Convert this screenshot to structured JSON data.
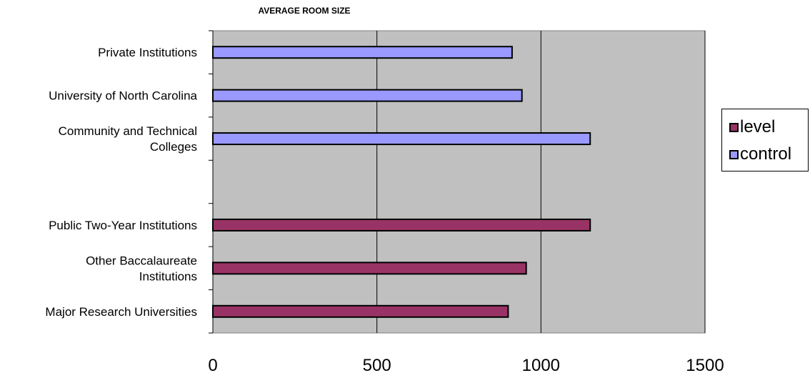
{
  "chart_data": {
    "type": "bar",
    "orientation": "horizontal",
    "title": "AVERAGE ROOM SIZE",
    "xlabel": "",
    "ylabel": "",
    "xlim": [
      0,
      1500
    ],
    "x_ticks": [
      0,
      500,
      1000,
      1500
    ],
    "grid": "vertical major gridlines",
    "legend_position": "right",
    "categories": [
      "Private Institutions",
      "University of North Carolina",
      "Community and Technical Colleges",
      "",
      "Public Two-Year Institutions",
      "Other Baccalaureate Institutions",
      "Major Research Universities"
    ],
    "category_lines": [
      [
        "Private Institutions"
      ],
      [
        "University of North Carolina"
      ],
      [
        "Community and Technical",
        "Colleges"
      ],
      [],
      [
        "Public Two-Year Institutions"
      ],
      [
        "Other Baccalaureate",
        "Institutions"
      ],
      [
        "Major Research Universities"
      ]
    ],
    "series": [
      {
        "name": "level",
        "color": "#993366",
        "values": [
          null,
          null,
          null,
          null,
          1150,
          955,
          900
        ]
      },
      {
        "name": "control",
        "color": "#9999ff",
        "values": [
          912,
          942,
          1150,
          null,
          null,
          null,
          null
        ]
      }
    ],
    "plot_background": "#c0c0c0"
  }
}
